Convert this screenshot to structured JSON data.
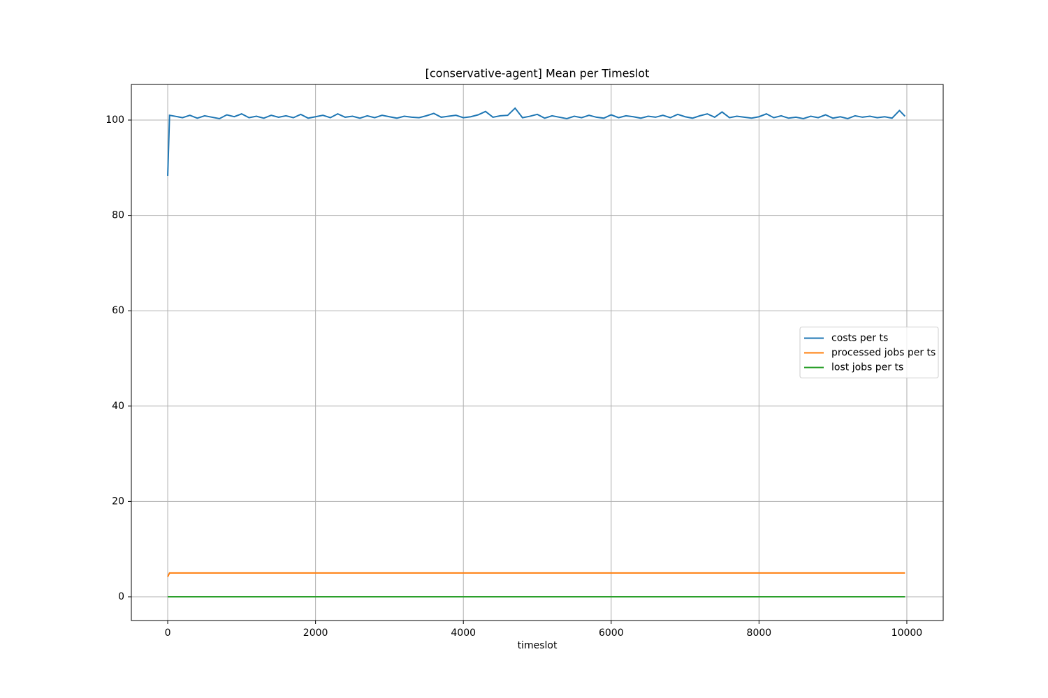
{
  "chart_data": {
    "type": "line",
    "title": "[conservative-agent] Mean per Timeslot",
    "x_label": "timeslot",
    "x": [
      0,
      25,
      100,
      200,
      300,
      400,
      500,
      600,
      700,
      800,
      900,
      1000,
      1100,
      1200,
      1300,
      1400,
      1500,
      1600,
      1700,
      1800,
      1900,
      2000,
      2100,
      2200,
      2300,
      2400,
      2500,
      2600,
      2700,
      2800,
      2900,
      3000,
      3100,
      3200,
      3300,
      3400,
      3500,
      3600,
      3700,
      3800,
      3900,
      4000,
      4100,
      4200,
      4300,
      4400,
      4500,
      4600,
      4700,
      4800,
      4900,
      5000,
      5100,
      5200,
      5300,
      5400,
      5500,
      5600,
      5700,
      5800,
      5900,
      6000,
      6100,
      6200,
      6300,
      6400,
      6500,
      6600,
      6700,
      6800,
      6900,
      7000,
      7100,
      7200,
      7300,
      7400,
      7500,
      7600,
      7700,
      7800,
      7900,
      8000,
      8100,
      8200,
      8300,
      8400,
      8500,
      8600,
      8700,
      8800,
      8900,
      9000,
      9100,
      9200,
      9300,
      9400,
      9500,
      9600,
      9700,
      9800,
      9900,
      9975
    ],
    "series": [
      {
        "name": "costs per ts",
        "color": "#1f77b4",
        "values": [
          88.3,
          101.0,
          100.8,
          100.5,
          101.0,
          100.4,
          100.9,
          100.6,
          100.3,
          101.1,
          100.7,
          101.3,
          100.5,
          100.8,
          100.4,
          101.0,
          100.6,
          100.9,
          100.5,
          101.2,
          100.4,
          100.7,
          101.0,
          100.5,
          101.3,
          100.6,
          100.8,
          100.4,
          100.9,
          100.5,
          101.0,
          100.7,
          100.4,
          100.8,
          100.6,
          100.5,
          100.9,
          101.4,
          100.6,
          100.8,
          101.0,
          100.5,
          100.7,
          101.1,
          101.8,
          100.6,
          100.9,
          101.0,
          102.5,
          100.5,
          100.8,
          101.2,
          100.4,
          100.9,
          100.6,
          100.3,
          100.8,
          100.5,
          101.0,
          100.6,
          100.4,
          101.1,
          100.5,
          100.9,
          100.7,
          100.4,
          100.8,
          100.6,
          101.0,
          100.5,
          101.2,
          100.7,
          100.4,
          100.9,
          101.3,
          100.6,
          101.7,
          100.5,
          100.8,
          100.6,
          100.4,
          100.7,
          101.3,
          100.5,
          100.9,
          100.4,
          100.6,
          100.3,
          100.8,
          100.5,
          101.1,
          100.4,
          100.7,
          100.3,
          100.9,
          100.6,
          100.8,
          100.5,
          100.7,
          100.4,
          102.0,
          100.8
        ]
      },
      {
        "name": "processed jobs per ts",
        "color": "#ff7f0e",
        "values": [
          4.2,
          5,
          5,
          5,
          5,
          5,
          5,
          5,
          5,
          5,
          5,
          5,
          5,
          5,
          5,
          5,
          5,
          5,
          5,
          5,
          5,
          5,
          5,
          5,
          5,
          5,
          5,
          5,
          5,
          5,
          5,
          5,
          5,
          5,
          5,
          5,
          5,
          5,
          5,
          5,
          5,
          5,
          5,
          5,
          5,
          5,
          5,
          5,
          5,
          5,
          5,
          5,
          5,
          5,
          5,
          5,
          5,
          5,
          5,
          5,
          5,
          5,
          5,
          5,
          5,
          5,
          5,
          5,
          5,
          5,
          5,
          5,
          5,
          5,
          5,
          5,
          5,
          5,
          5,
          5,
          5,
          5,
          5,
          5,
          5,
          5,
          5,
          5,
          5,
          5,
          5,
          5,
          5,
          5,
          5,
          5,
          5,
          5,
          5,
          5,
          5,
          5
        ]
      },
      {
        "name": "lost jobs per ts",
        "color": "#2ca02c",
        "values": [
          0,
          0,
          0,
          0,
          0,
          0,
          0,
          0,
          0,
          0,
          0,
          0,
          0,
          0,
          0,
          0,
          0,
          0,
          0,
          0,
          0,
          0,
          0,
          0,
          0,
          0,
          0,
          0,
          0,
          0,
          0,
          0,
          0,
          0,
          0,
          0,
          0,
          0,
          0,
          0,
          0,
          0,
          0,
          0,
          0,
          0,
          0,
          0,
          0,
          0,
          0,
          0,
          0,
          0,
          0,
          0,
          0,
          0,
          0,
          0,
          0,
          0,
          0,
          0,
          0,
          0,
          0,
          0,
          0,
          0,
          0,
          0,
          0,
          0,
          0,
          0,
          0,
          0,
          0,
          0,
          0,
          0,
          0,
          0,
          0,
          0,
          0,
          0,
          0,
          0,
          0,
          0,
          0,
          0,
          0,
          0,
          0,
          0,
          0,
          0,
          0,
          0
        ]
      }
    ],
    "xlim": [
      -492,
      10492
    ],
    "xticks": [
      0,
      2000,
      4000,
      6000,
      8000,
      10000
    ],
    "ylim": [
      -4.98,
      107.47
    ],
    "yticks": [
      0,
      20,
      40,
      60,
      80,
      100
    ],
    "grid": true,
    "legend": "center right"
  }
}
